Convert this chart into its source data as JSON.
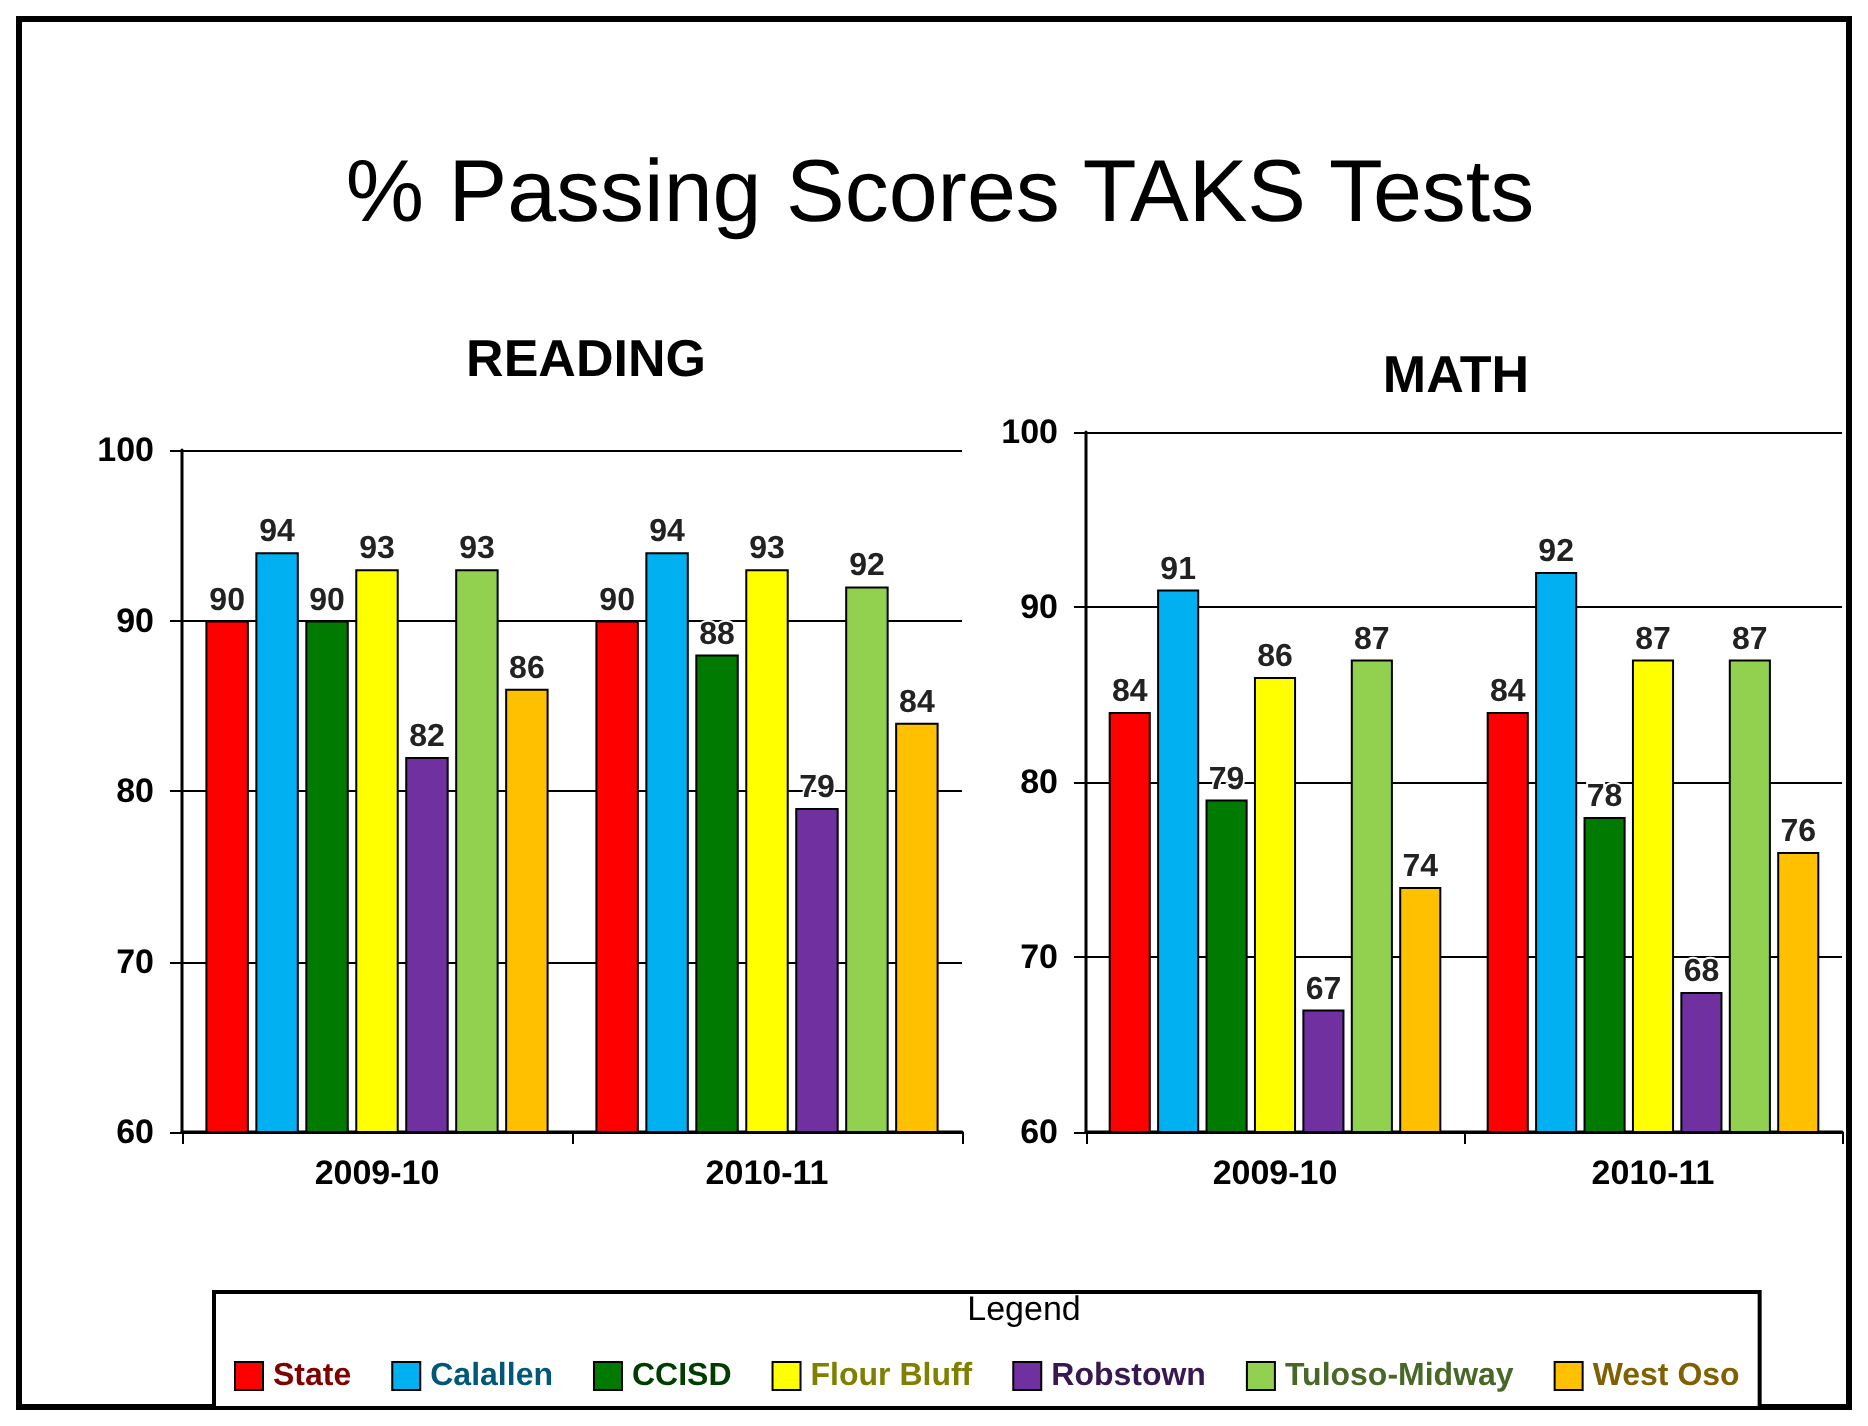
{
  "chart_data": [
    {
      "type": "bar",
      "title": "READING",
      "categories": [
        "2009-10",
        "2010-11"
      ],
      "series": [
        {
          "color": "#ff0000",
          "values": [
            90,
            90
          ]
        },
        {
          "color": "#00b0f0",
          "values": [
            94,
            94
          ]
        },
        {
          "color": "#007a00",
          "values": [
            90,
            88
          ]
        },
        {
          "color": "#ffff00",
          "values": [
            93,
            93
          ]
        },
        {
          "color": "#7030a0",
          "values": [
            82,
            79
          ]
        },
        {
          "color": "#92d050",
          "values": [
            93,
            92
          ]
        },
        {
          "color": "#ffc000",
          "values": [
            86,
            84
          ]
        }
      ],
      "ylim": [
        60,
        100
      ],
      "yticks": [
        60,
        70,
        80,
        90,
        100
      ],
      "grid": "y",
      "data_labels": true
    },
    {
      "type": "bar",
      "title": "MATH",
      "categories": [
        "2009-10",
        "2010-11"
      ],
      "series": [
        {
          "name": "State",
          "color": "#ff0000",
          "values": [
            84,
            84
          ]
        },
        {
          "name": "Calallen",
          "color": "#00b0f0",
          "values": [
            91,
            92
          ]
        },
        {
          "name": "CCISD",
          "color": "#007a00",
          "values": [
            79,
            78
          ]
        },
        {
          "name": "Flour Bluff",
          "color": "#ffff00",
          "values": [
            86,
            87
          ]
        },
        {
          "name": "Robstown",
          "color": "#7030a0",
          "values": [
            67,
            68
          ]
        },
        {
          "name": "Tuloso-Midway",
          "color": "#92d050",
          "values": [
            87,
            87
          ]
        },
        {
          "name": "West Oso",
          "color": "#ffc000",
          "values": [
            74,
            76
          ]
        }
      ],
      "ylim": [
        60,
        100
      ],
      "yticks": [
        60,
        70,
        80,
        90,
        100
      ],
      "grid": "y",
      "data_labels": true,
      "legend": "bottom",
      "legend_title": "Legend",
      "annotations": [
        "% Passing Scores TAKS Tests"
      ]
    }
  ]
}
